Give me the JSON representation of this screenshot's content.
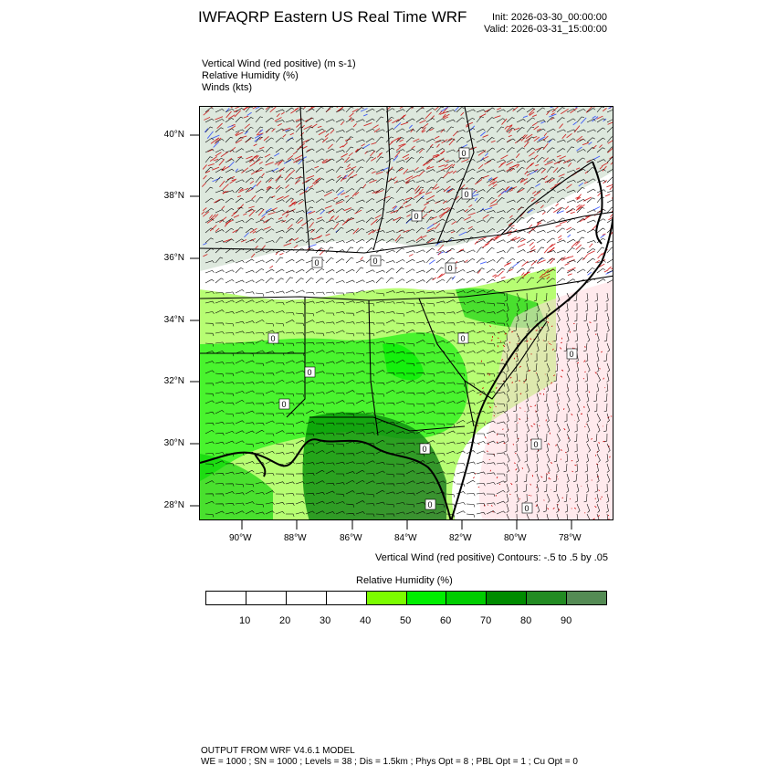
{
  "header": {
    "title": "IWFAQRP Eastern US Real Time WRF",
    "init": "Init: 2026-03-30_00:00:00",
    "valid": "Valid: 2026-03-31_15:00:00"
  },
  "fields": {
    "line1": "Vertical Wind (red positive)   (m s-1)",
    "line2": "Relative Humidity   (%)",
    "line3": "Winds   (kts)"
  },
  "map": {
    "lat_labels": [
      "40°N",
      "38°N",
      "36°N",
      "34°N",
      "32°N",
      "30°N",
      "28°N"
    ],
    "lon_labels": [
      "90°W",
      "88°W",
      "86°W",
      "84°W",
      "82°W",
      "80°W",
      "78°W"
    ],
    "contour_zero_label": "0",
    "colors": {
      "vertical_wind_positive": "#cc0000",
      "vertical_wind_negative": "#1a3cff",
      "barbs": "#000000"
    }
  },
  "contour_note": "Vertical Wind (red positive) Contours: -.5 to .5 by .05",
  "colorbar": {
    "title": "Relative Humidity  (%)",
    "labels": [
      "10",
      "20",
      "30",
      "40",
      "50",
      "60",
      "70",
      "80",
      "90"
    ],
    "colors": [
      "#ffffff",
      "#ffffff",
      "#ffffff",
      "#ffffff",
      "#7cfc00",
      "#00ee00",
      "#00cd00",
      "#008b00",
      "#228b22",
      "#548b54"
    ]
  },
  "footer": {
    "line1": "OUTPUT FROM WRF V4.6.1 MODEL",
    "line2": "WE = 1000 ; SN = 1000 ; Levels = 38 ; Dis = 1.5km ; Phys Opt = 8 ; PBL Opt = 1 ; Cu Opt = 0"
  }
}
